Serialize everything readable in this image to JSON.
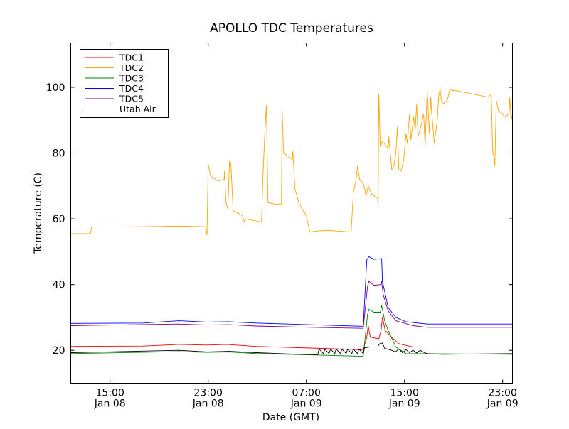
{
  "chart_data": {
    "type": "line",
    "title": "APOLLO TDC Temperatures",
    "xlabel": "Date (GMT)",
    "ylabel": "Temperature (C)",
    "x_units": "hours since Jan 08 00:00 GMT",
    "xlim": [
      11.8,
      47.8
    ],
    "ylim": [
      10,
      113.5
    ],
    "grid": false,
    "legend_position": "top-left",
    "yticks": [
      20,
      40,
      60,
      80,
      100
    ],
    "xticks": [
      {
        "x": 15,
        "time": "15:00",
        "date": "Jan 08"
      },
      {
        "x": 23,
        "time": "23:00",
        "date": "Jan 08"
      },
      {
        "x": 31,
        "time": "07:00",
        "date": "Jan 09"
      },
      {
        "x": 39,
        "time": "15:00",
        "date": "Jan 09"
      },
      {
        "x": 47,
        "time": "23:00",
        "date": "Jan 09"
      }
    ],
    "series": [
      {
        "name": "TDC1",
        "color": "#ff0000",
        "points": [
          [
            11.8,
            21.2
          ],
          [
            17.7,
            21.3
          ],
          [
            20.6,
            21.8
          ],
          [
            22.9,
            21.6
          ],
          [
            24.5,
            21.8
          ],
          [
            26.9,
            21.2
          ],
          [
            30.4,
            20.8
          ],
          [
            35.64,
            20.2
          ],
          [
            35.93,
            24
          ],
          [
            36.04,
            27.5
          ],
          [
            36.22,
            24
          ],
          [
            36.91,
            23.5
          ],
          [
            37.09,
            26
          ],
          [
            37.2,
            30
          ],
          [
            37.43,
            26
          ],
          [
            37.96,
            24
          ],
          [
            38.54,
            22
          ],
          [
            39.7,
            21
          ],
          [
            47.8,
            21
          ]
        ]
      },
      {
        "name": "TDC2",
        "color": "#ffa500",
        "points": [
          [
            11.8,
            55.5
          ],
          [
            13.4,
            55.5
          ],
          [
            13.5,
            57.5
          ],
          [
            17.7,
            57.6
          ],
          [
            20.6,
            57.8
          ],
          [
            22.8,
            57.6
          ],
          [
            22.9,
            55
          ],
          [
            23.0,
            76.5
          ],
          [
            23.2,
            73
          ],
          [
            23.8,
            71.5
          ],
          [
            24.3,
            72
          ],
          [
            24.33,
            74.5
          ],
          [
            24.45,
            65
          ],
          [
            24.6,
            63
          ],
          [
            24.74,
            77.5
          ],
          [
            24.85,
            77
          ],
          [
            25.03,
            62.5
          ],
          [
            25.78,
            61
          ],
          [
            25.95,
            59
          ],
          [
            26.07,
            60
          ],
          [
            27.35,
            59
          ],
          [
            27.46,
            72.5
          ],
          [
            27.64,
            88
          ],
          [
            27.75,
            94.5
          ],
          [
            27.87,
            65
          ],
          [
            28.39,
            64.5
          ],
          [
            28.97,
            64.5
          ],
          [
            29.03,
            93
          ],
          [
            29.14,
            80
          ],
          [
            29.55,
            79
          ],
          [
            29.84,
            78
          ],
          [
            29.9,
            80.5
          ],
          [
            30.07,
            69
          ],
          [
            30.42,
            64.5
          ],
          [
            31.0,
            61
          ],
          [
            31.17,
            58
          ],
          [
            31.29,
            56
          ],
          [
            31.87,
            56.3
          ],
          [
            32.74,
            56.5
          ],
          [
            34.65,
            56
          ],
          [
            34.83,
            68
          ],
          [
            35.06,
            72
          ],
          [
            35.17,
            76
          ],
          [
            35.35,
            72
          ],
          [
            35.64,
            71
          ],
          [
            35.87,
            67
          ],
          [
            36.04,
            70
          ],
          [
            36.33,
            67.5
          ],
          [
            36.68,
            66.5
          ],
          [
            36.8,
            66.5
          ],
          [
            36.85,
            64
          ],
          [
            36.91,
            98
          ],
          [
            37.03,
            82
          ],
          [
            37.2,
            83.5
          ],
          [
            37.67,
            81.5
          ],
          [
            37.72,
            85
          ],
          [
            37.96,
            75
          ],
          [
            38.13,
            76
          ],
          [
            38.3,
            80
          ],
          [
            38.42,
            88
          ],
          [
            38.54,
            75
          ],
          [
            38.71,
            74.5
          ],
          [
            38.94,
            78
          ],
          [
            39.12,
            86
          ],
          [
            39.23,
            83
          ],
          [
            39.41,
            92
          ],
          [
            39.52,
            84
          ],
          [
            39.75,
            91
          ],
          [
            39.87,
            87
          ],
          [
            39.99,
            95
          ],
          [
            40.1,
            85
          ],
          [
            40.39,
            89
          ],
          [
            40.56,
            92
          ],
          [
            40.68,
            82
          ],
          [
            40.85,
            99
          ],
          [
            41.03,
            86
          ],
          [
            41.14,
            97
          ],
          [
            41.2,
            93
          ],
          [
            41.43,
            83
          ],
          [
            41.67,
            90
          ],
          [
            41.78,
            97
          ],
          [
            41.9,
            99.5
          ],
          [
            42.01,
            96
          ],
          [
            42.19,
            95
          ],
          [
            42.48,
            96
          ],
          [
            42.71,
            99.5
          ],
          [
            42.88,
            99
          ],
          [
            43.17,
            99
          ],
          [
            45.84,
            97
          ],
          [
            46.07,
            98
          ],
          [
            46.19,
            80
          ],
          [
            46.3,
            79
          ],
          [
            46.36,
            76
          ],
          [
            46.48,
            96
          ],
          [
            46.65,
            93
          ],
          [
            46.94,
            92
          ],
          [
            47.23,
            91
          ],
          [
            47.52,
            92
          ],
          [
            47.58,
            97
          ],
          [
            47.69,
            90
          ],
          [
            47.8,
            92
          ]
        ]
      },
      {
        "name": "TDC3",
        "color": "#008000",
        "points": [
          [
            11.8,
            19
          ],
          [
            20.6,
            19.6
          ],
          [
            22.9,
            19.4
          ],
          [
            24.7,
            19.5
          ],
          [
            26.9,
            19
          ],
          [
            30.4,
            18.7
          ],
          [
            35.64,
            18.2
          ],
          [
            35.99,
            31
          ],
          [
            36.1,
            32.5
          ],
          [
            36.51,
            31.6
          ],
          [
            37.03,
            31.6
          ],
          [
            37.14,
            33.7
          ],
          [
            37.38,
            29
          ],
          [
            37.67,
            26
          ],
          [
            38.3,
            21
          ],
          [
            39.12,
            19
          ],
          [
            47.8,
            18.8
          ]
        ]
      },
      {
        "name": "TDC4",
        "color": "#0000ff",
        "points": [
          [
            11.8,
            28.2
          ],
          [
            17.7,
            28.3
          ],
          [
            20.6,
            29
          ],
          [
            22.9,
            28.6
          ],
          [
            24.7,
            28.7
          ],
          [
            26.9,
            28.3
          ],
          [
            30.4,
            27.9
          ],
          [
            35.64,
            27.3
          ],
          [
            35.93,
            47.5
          ],
          [
            36.1,
            48.5
          ],
          [
            36.51,
            47.7
          ],
          [
            37.14,
            47.9
          ],
          [
            37.2,
            41
          ],
          [
            37.67,
            33
          ],
          [
            38.3,
            30
          ],
          [
            39.12,
            28.7
          ],
          [
            40.85,
            28
          ],
          [
            47.8,
            28
          ]
        ]
      },
      {
        "name": "TDC5",
        "color": "#800080",
        "points": [
          [
            11.8,
            27.5
          ],
          [
            20.6,
            28
          ],
          [
            22.9,
            27.7
          ],
          [
            24.7,
            27.8
          ],
          [
            26.9,
            27.4
          ],
          [
            30.4,
            27.1
          ],
          [
            35.64,
            26.7
          ],
          [
            35.99,
            39.5
          ],
          [
            36.1,
            41
          ],
          [
            36.51,
            39.8
          ],
          [
            37.09,
            40
          ],
          [
            37.14,
            41
          ],
          [
            37.26,
            37
          ],
          [
            37.67,
            32
          ],
          [
            38.3,
            29
          ],
          [
            39.7,
            27.5
          ],
          [
            40.85,
            27
          ],
          [
            47.8,
            27
          ]
        ]
      },
      {
        "name": "Utah Air",
        "color": "#000000",
        "points": [
          [
            11.8,
            19.3
          ],
          [
            20.6,
            20
          ],
          [
            22.9,
            19.5
          ],
          [
            24.7,
            19.7
          ],
          [
            26.9,
            19.3
          ],
          [
            30.4,
            18.8
          ],
          [
            31.93,
            18.7
          ],
          [
            32.04,
            20.4
          ],
          [
            32.39,
            19
          ],
          [
            32.51,
            20.4
          ],
          [
            32.85,
            19
          ],
          [
            32.97,
            20.4
          ],
          [
            33.32,
            19
          ],
          [
            33.43,
            20.4
          ],
          [
            33.78,
            19
          ],
          [
            33.9,
            20.4
          ],
          [
            34.25,
            19
          ],
          [
            34.36,
            20.4
          ],
          [
            34.71,
            19
          ],
          [
            34.83,
            20.4
          ],
          [
            35.17,
            19
          ],
          [
            35.29,
            20.4
          ],
          [
            35.64,
            19
          ],
          [
            35.75,
            20.8
          ],
          [
            36.22,
            21
          ],
          [
            36.8,
            21
          ],
          [
            36.97,
            22
          ],
          [
            37.2,
            22.2
          ],
          [
            37.38,
            20.6
          ],
          [
            37.96,
            20
          ],
          [
            38.25,
            19.5
          ],
          [
            38.54,
            20.4
          ],
          [
            38.83,
            19.3
          ],
          [
            39.12,
            20.2
          ],
          [
            39.41,
            19.3
          ],
          [
            39.7,
            20
          ],
          [
            39.99,
            19.2
          ],
          [
            40.27,
            20
          ],
          [
            40.56,
            19.4
          ],
          [
            40.85,
            19
          ],
          [
            42.01,
            18.8
          ],
          [
            47.8,
            19
          ]
        ]
      }
    ]
  }
}
